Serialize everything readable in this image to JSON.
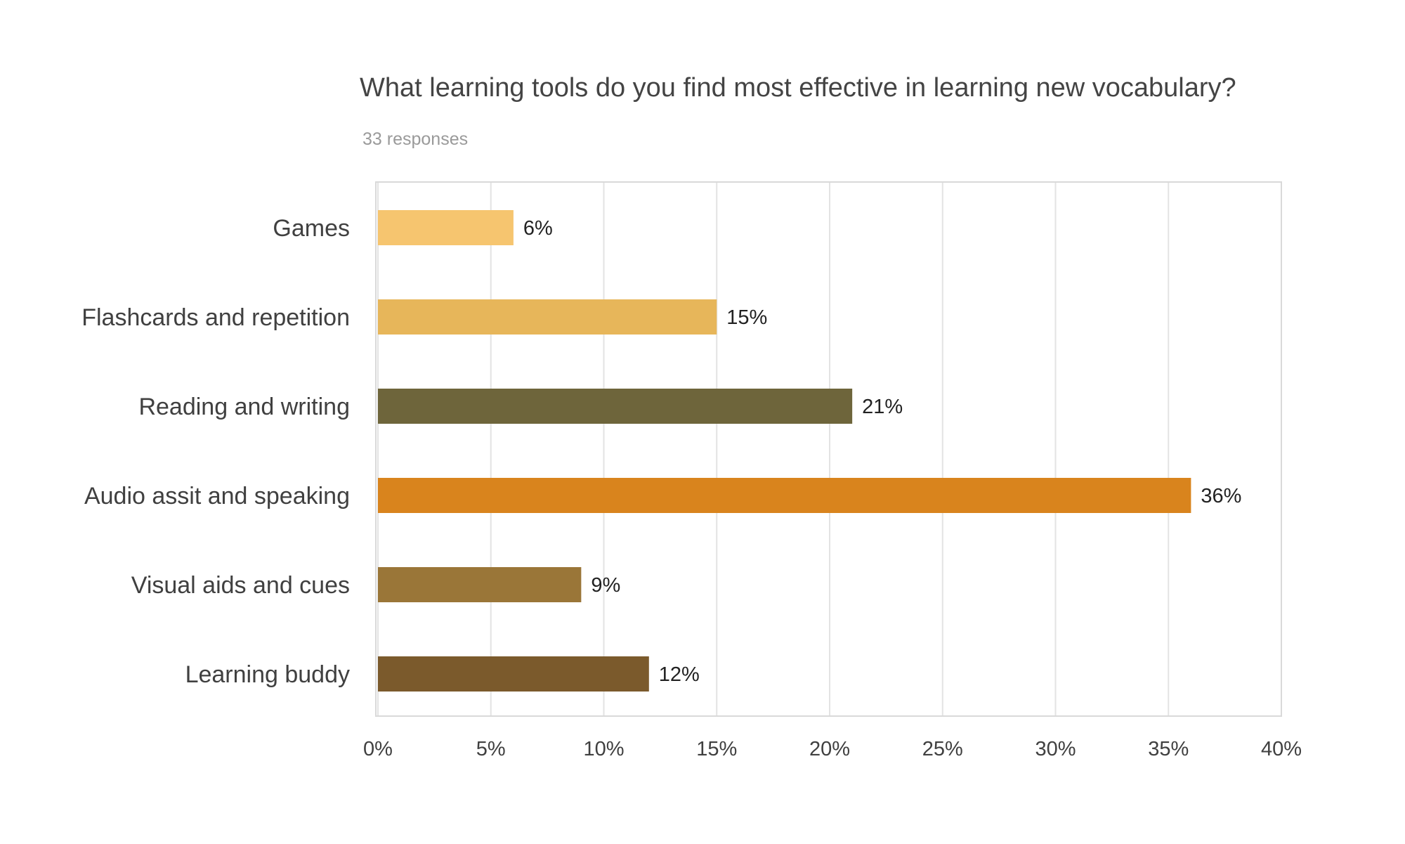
{
  "chart_data": {
    "type": "bar",
    "orientation": "horizontal",
    "title": "What learning tools do you find most effective in learning new vocabulary?",
    "subtitle": "33 responses",
    "categories": [
      "Games",
      "Flashcards and repetition",
      "Reading and writing",
      "Audio assit and speaking",
      "Visual aids and cues",
      "Learning buddy"
    ],
    "values": [
      6,
      15,
      21,
      36,
      9,
      12
    ],
    "value_labels": [
      "6%",
      "15%",
      "21%",
      "36%",
      "9%",
      "12%"
    ],
    "colors": [
      "#F6C56F",
      "#E7B65A",
      "#6E653B",
      "#D9841D",
      "#9A7638",
      "#7B5A2C"
    ],
    "xlim": [
      0,
      40
    ],
    "xticks": [
      0,
      5,
      10,
      15,
      20,
      25,
      30,
      35,
      40
    ],
    "xtick_labels": [
      "0%",
      "5%",
      "10%",
      "15%",
      "20%",
      "25%",
      "30%",
      "35%",
      "40%"
    ],
    "grid": true,
    "legend": "none"
  }
}
